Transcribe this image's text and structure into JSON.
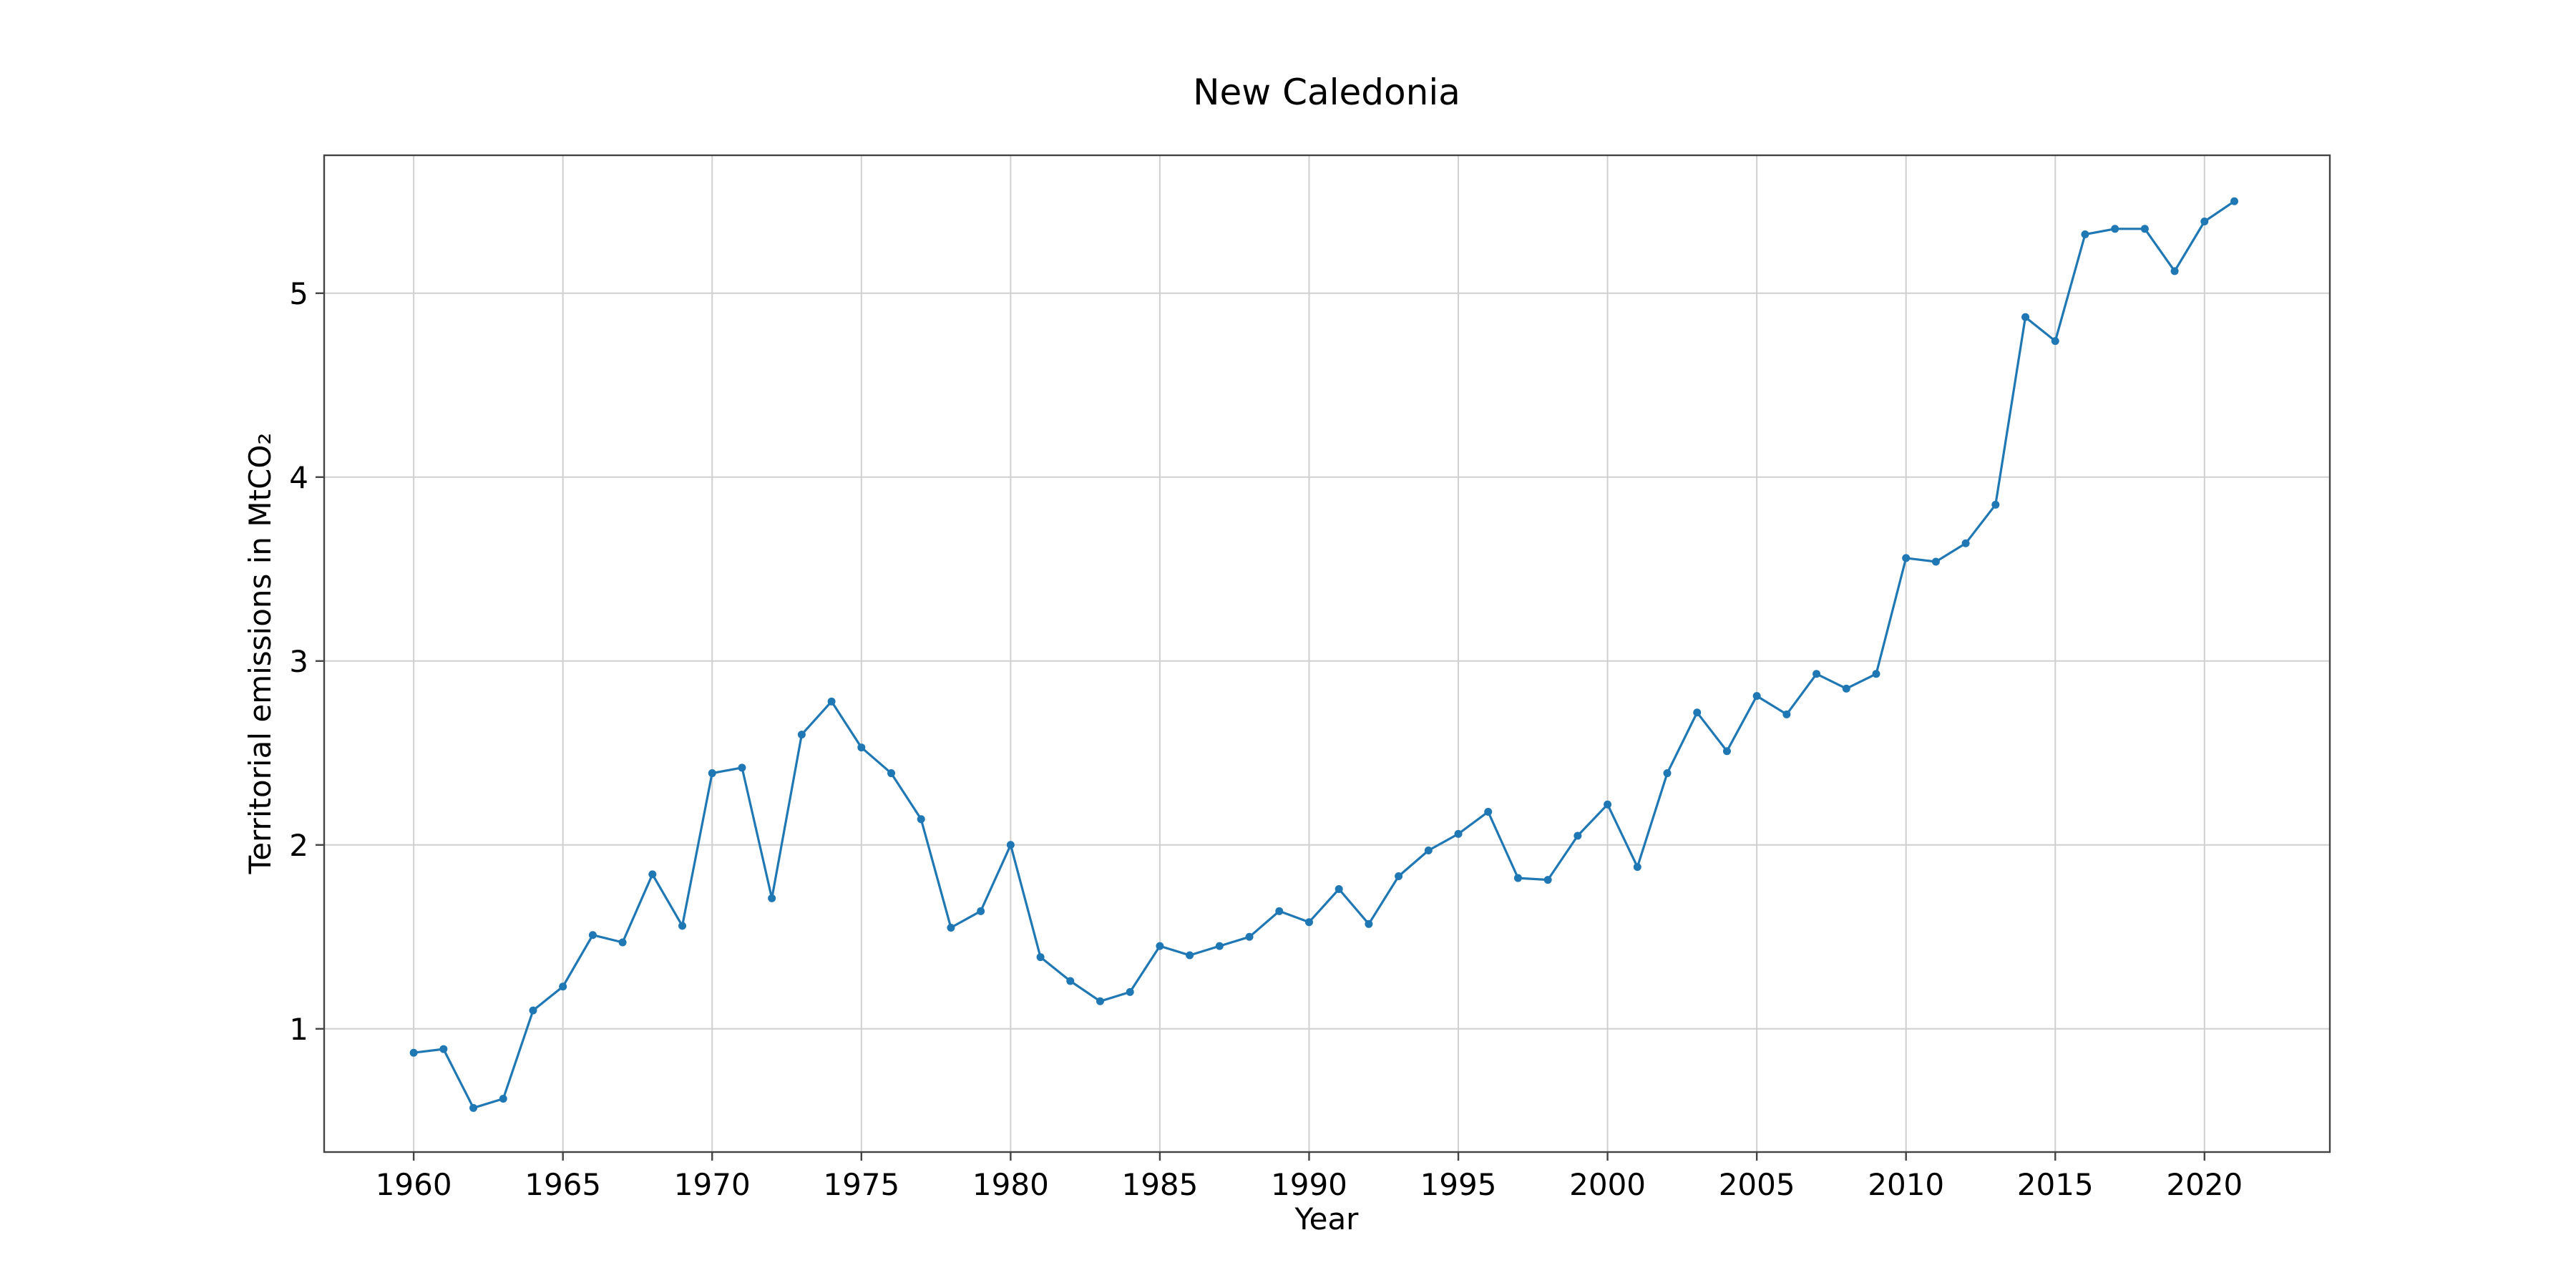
{
  "chart_data": {
    "type": "line",
    "title": "New Caledonia",
    "xlabel": "Year",
    "ylabel": "Territorial emissions in MtCO₂",
    "xlim": [
      1957,
      2024.2
    ],
    "ylim": [
      0.33,
      5.75
    ],
    "xticks": [
      1960,
      1965,
      1970,
      1975,
      1980,
      1985,
      1990,
      1995,
      2000,
      2005,
      2010,
      2015,
      2020
    ],
    "yticks": [
      1,
      2,
      3,
      4,
      5
    ],
    "grid": true,
    "legend": "none",
    "series": [
      {
        "color": "#1f77b4",
        "x": [
          1960,
          1961,
          1962,
          1963,
          1964,
          1965,
          1966,
          1967,
          1968,
          1969,
          1970,
          1971,
          1972,
          1973,
          1974,
          1975,
          1976,
          1977,
          1978,
          1979,
          1980,
          1981,
          1982,
          1983,
          1984,
          1985,
          1986,
          1987,
          1988,
          1989,
          1990,
          1991,
          1992,
          1993,
          1994,
          1995,
          1996,
          1997,
          1998,
          1999,
          2000,
          2001,
          2002,
          2003,
          2004,
          2005,
          2006,
          2007,
          2008,
          2009,
          2010,
          2011,
          2012,
          2013,
          2014,
          2015,
          2016,
          2017,
          2018,
          2019,
          2020,
          2021
        ],
        "values": [
          0.87,
          0.89,
          0.57,
          0.62,
          1.1,
          1.23,
          1.51,
          1.47,
          1.84,
          1.56,
          2.39,
          2.42,
          1.71,
          2.6,
          2.78,
          2.53,
          2.39,
          2.14,
          1.55,
          1.64,
          2.0,
          1.39,
          1.26,
          1.15,
          1.2,
          1.45,
          1.4,
          1.45,
          1.5,
          1.64,
          1.58,
          1.76,
          1.57,
          1.83,
          1.97,
          2.06,
          2.18,
          1.82,
          1.81,
          2.05,
          2.22,
          1.88,
          2.39,
          2.72,
          2.51,
          2.81,
          2.71,
          2.93,
          2.85,
          2.93,
          3.56,
          3.54,
          3.64,
          3.85,
          4.87,
          4.74,
          5.32,
          5.35,
          5.35,
          5.12,
          5.39,
          5.5
        ]
      }
    ]
  }
}
